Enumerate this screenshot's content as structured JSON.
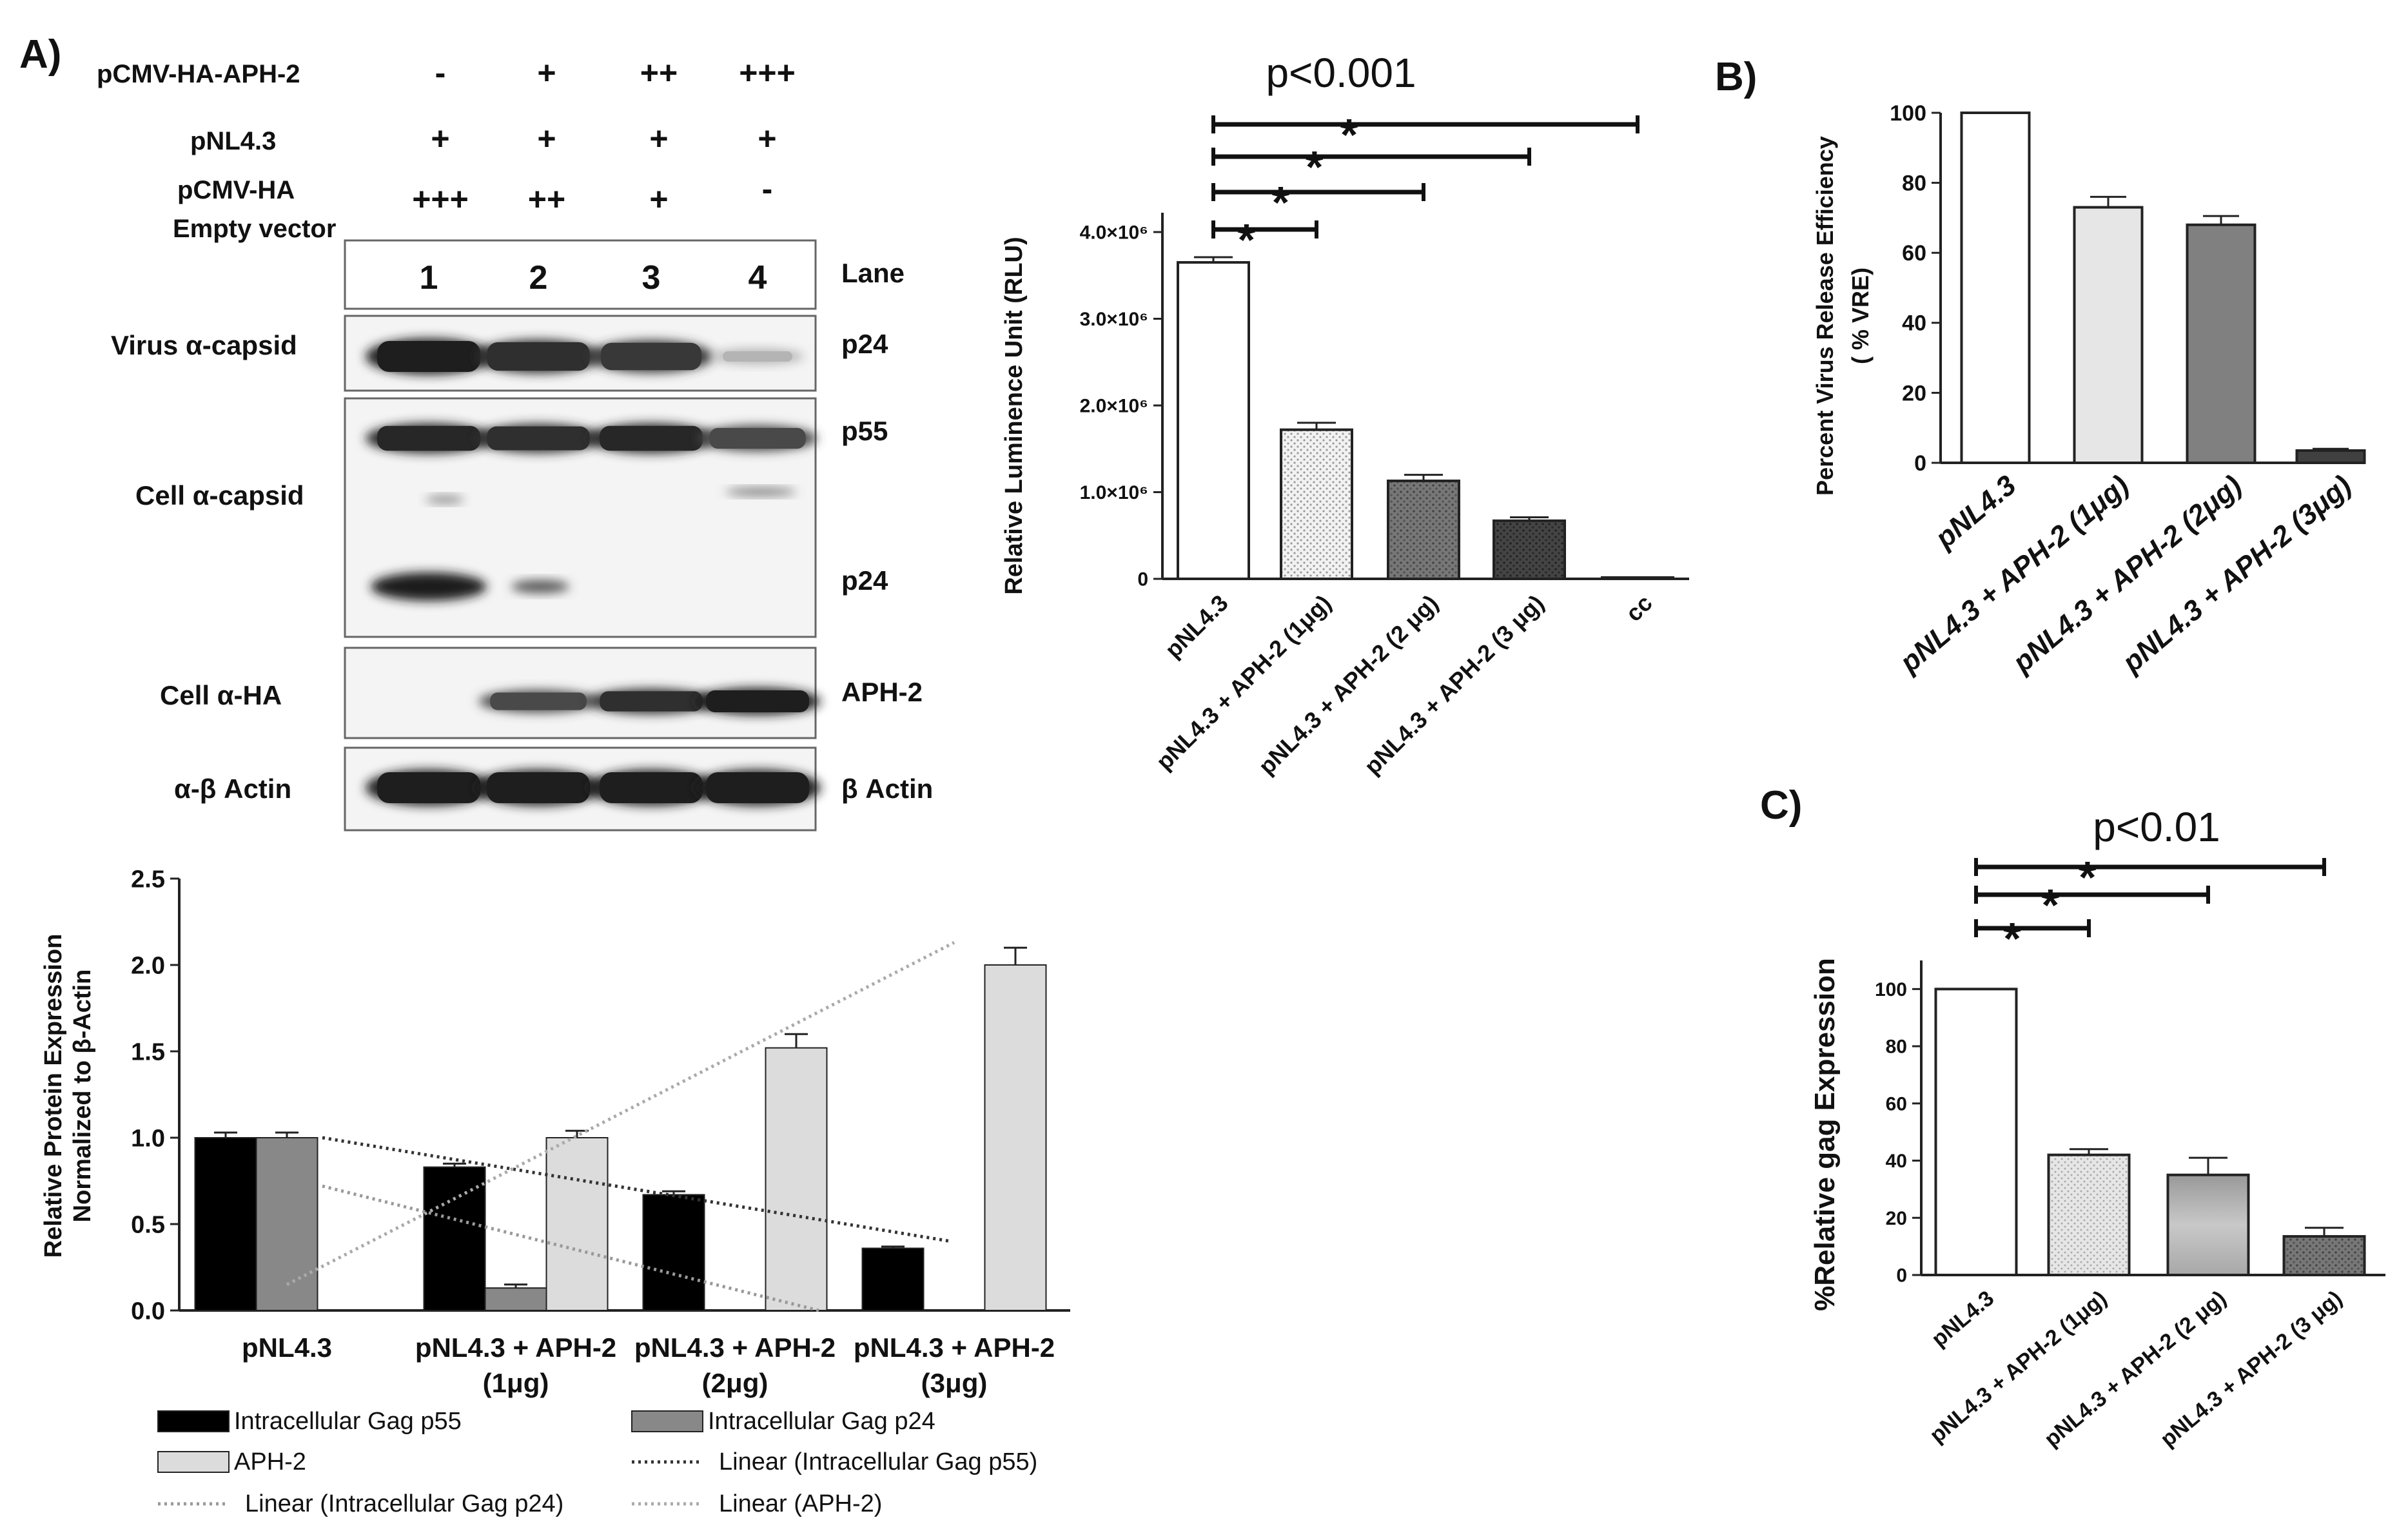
{
  "panels": {
    "A": "A)",
    "B": "B)",
    "C": "C)"
  },
  "western_blot": {
    "conditions": [
      {
        "label": "pCMV-HA-APH-2",
        "values": [
          "-",
          "+",
          "++",
          "+++"
        ]
      },
      {
        "label": "pNL4.3",
        "values": [
          "+",
          "+",
          "+",
          "+"
        ]
      },
      {
        "label": "pCMV-HA",
        "values": [
          "+++",
          "++",
          "+",
          "-"
        ]
      }
    ],
    "condition_sublabel": "Empty vector",
    "lanes": [
      "1",
      "2",
      "3",
      "4"
    ],
    "lane_label": "Lane",
    "rows": [
      {
        "left": "Virus α-capsid",
        "right": [
          "p24"
        ],
        "intensity": [
          1.0,
          0.9,
          0.85,
          0.12
        ]
      },
      {
        "left": "Cell α-capsid",
        "right": [
          "p55",
          "p24"
        ],
        "intensity": [
          0.95,
          0.9,
          0.95,
          0.75
        ]
      },
      {
        "left": "Cell α-HA",
        "right": [
          "APH-2"
        ],
        "intensity": [
          0.0,
          0.75,
          0.9,
          1.0
        ]
      },
      {
        "left": "α-β Actin",
        "right": [
          "β Actin"
        ],
        "intensity": [
          1.0,
          1.0,
          1.0,
          1.0
        ]
      }
    ]
  },
  "chart_data": [
    {
      "id": "luminescence",
      "type": "bar",
      "title": "p<0.001",
      "ylabel": "Relative Luminence Unit (RLU)",
      "ylim": [
        0,
        4000000
      ],
      "yticks": [
        "0",
        "1.0×10⁶",
        "2.0×10⁶",
        "3.0×10⁶",
        "4.0×10⁶"
      ],
      "categories": [
        "pNL4.3",
        "pNL4.3 + APH-2  (1μg)",
        "pNL4.3 + APH-2  (2 μg)",
        "pNL4.3 + APH-2  (3 μg)",
        "cc"
      ],
      "values": [
        3650000,
        1720000,
        1130000,
        670000,
        15000
      ],
      "errors": [
        60000,
        80000,
        70000,
        40000,
        0
      ],
      "significance": [
        "*",
        "*",
        "*"
      ]
    },
    {
      "id": "vre",
      "type": "bar",
      "title": "",
      "ylabel": "Percent Virus Release Efficiency",
      "ylabel2": "( % VRE)",
      "ylim": [
        0,
        100
      ],
      "yticks": [
        "0",
        "20",
        "40",
        "60",
        "80",
        "100"
      ],
      "categories": [
        "pNL4.3",
        "pNL4.3 + APH-2 (1μg)",
        "pNL4.3 + APH-2 (2μg)",
        "pNL4.3 + APH-2 (3μg)"
      ],
      "values": [
        100,
        73,
        68,
        3.5
      ],
      "errors": [
        0,
        3,
        2.5,
        0.5
      ]
    },
    {
      "id": "protein",
      "type": "bar",
      "ylabel": "Relative Protein Expression",
      "ylabel2": "Normalized to β-Actin",
      "ylim": [
        0,
        2.5
      ],
      "yticks": [
        "0.0",
        "0.5",
        "1.0",
        "1.5",
        "2.0",
        "2.5"
      ],
      "categories": [
        {
          "line1": "pNL4.3",
          "line2": ""
        },
        {
          "line1": "pNL4.3 + APH-2",
          "line2": "(1μg)"
        },
        {
          "line1": "pNL4.3 + APH-2",
          "line2": "(2μg)"
        },
        {
          "line1": "pNL4.3 + APH-2",
          "line2": "(3μg)"
        }
      ],
      "series": [
        {
          "name": "Intracellular Gag p55",
          "color": "#000000",
          "values": [
            1.0,
            0.83,
            0.67,
            0.36
          ],
          "errors": [
            0.03,
            0.02,
            0.02,
            0.01
          ]
        },
        {
          "name": "Intracellular Gag p24",
          "color": "#888888",
          "values": [
            1.0,
            0.13,
            0,
            0
          ],
          "errors": [
            0.03,
            0.02,
            0,
            0
          ]
        },
        {
          "name": "APH-2",
          "color": "#dcdcdc",
          "values": [
            0,
            1.0,
            1.52,
            2.0
          ],
          "errors": [
            0,
            0.04,
            0.08,
            0.1
          ]
        }
      ],
      "trendlines": [
        {
          "name": "Linear (Intracellular Gag p55)",
          "color": "#333333",
          "from": 1.0,
          "to": 0.4
        },
        {
          "name": "Linear (Intracellular Gag p24)",
          "color": "#999999",
          "from": 0.72,
          "to": 0.0
        },
        {
          "name": "Linear (APH-2)",
          "color": "#aaaaaa",
          "from": 0.15,
          "to": 2.13
        }
      ],
      "legend_placement": "bottom"
    },
    {
      "id": "gag",
      "type": "bar",
      "title": "p<0.01",
      "ylabel": "%Relative gag Expression",
      "ylim": [
        0,
        110
      ],
      "yticks": [
        "0",
        "20",
        "40",
        "60",
        "80",
        "100"
      ],
      "categories": [
        "pNL4.3",
        "pNL4.3 + APH-2 (1μg)",
        "pNL4.3 + APH-2 (2 μg)",
        "pNL4.3 + APH-2 (3 μg)"
      ],
      "values": [
        100,
        42,
        35,
        13.5
      ],
      "errors": [
        0,
        2,
        6,
        3
      ],
      "significance": [
        "*",
        "*",
        "*"
      ]
    }
  ]
}
